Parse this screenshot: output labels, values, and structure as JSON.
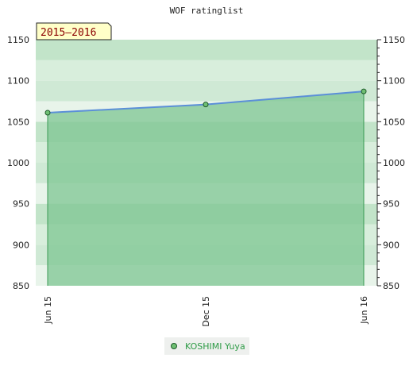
{
  "chart_data": {
    "type": "area",
    "title": "WOF ratinglist",
    "period_label": "2015–2016",
    "x": [
      "Jun 15",
      "Dec 15",
      "Jun 16"
    ],
    "series": [
      {
        "name": "KOSHIMI Yuya",
        "values": [
          1061,
          1071,
          1087
        ]
      }
    ],
    "ylim": [
      850,
      1150
    ],
    "yticks": [
      850,
      900,
      950,
      1000,
      1050,
      1100,
      1150
    ],
    "xlabel": "",
    "ylabel": "",
    "grid": true,
    "legend_position": "bottom",
    "colors": {
      "line": "#5b8fd8",
      "area": "#7ec592",
      "point_fill": "#6fbf73",
      "point_stroke": "#1d5a2a",
      "label_bg": "#ffffc8",
      "label_text": "#8b0000",
      "legend_text": "#2e9b46"
    }
  }
}
